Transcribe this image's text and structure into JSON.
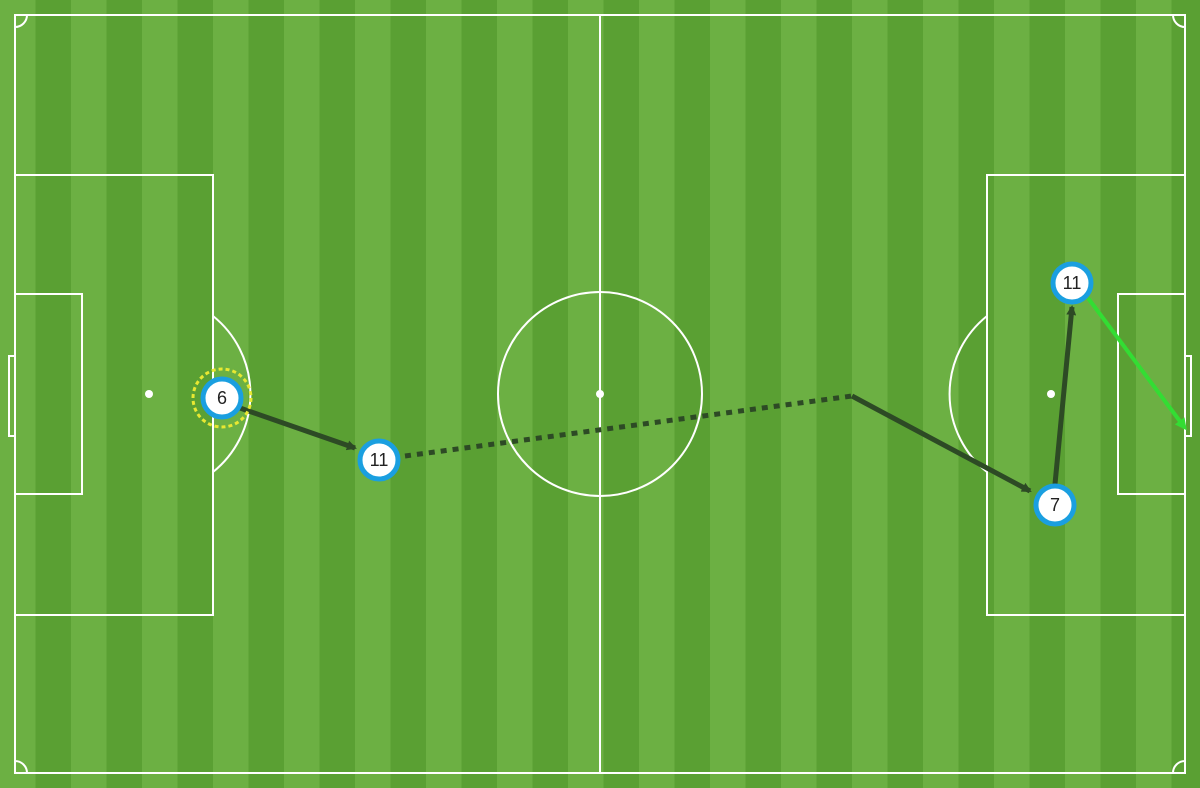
{
  "colors": {
    "stripe_light": "#6cb043",
    "stripe_dark": "#5aa033",
    "line": "#ffffff",
    "player_fill": "#ffffff",
    "player_ring": "#1a9fe0",
    "pass_arrow": "#2d4a25",
    "carry_dotted": "#2d4a25",
    "shot_arrow": "#33dd33",
    "highlight_ring": "#e8e832"
  },
  "players": [
    {
      "id": "p6",
      "number": "6",
      "highlighted": true
    },
    {
      "id": "p11a",
      "number": "11",
      "highlighted": false
    },
    {
      "id": "p7",
      "number": "7",
      "highlighted": false
    },
    {
      "id": "p11b",
      "number": "11",
      "highlighted": false
    }
  ],
  "actions": [
    {
      "type": "pass",
      "from": "p6",
      "to": "p11a"
    },
    {
      "type": "carry",
      "from": "p11a"
    },
    {
      "type": "pass",
      "to": "p7"
    },
    {
      "type": "pass",
      "from": "p7",
      "to": "p11b"
    },
    {
      "type": "shot",
      "from": "p11b"
    }
  ]
}
